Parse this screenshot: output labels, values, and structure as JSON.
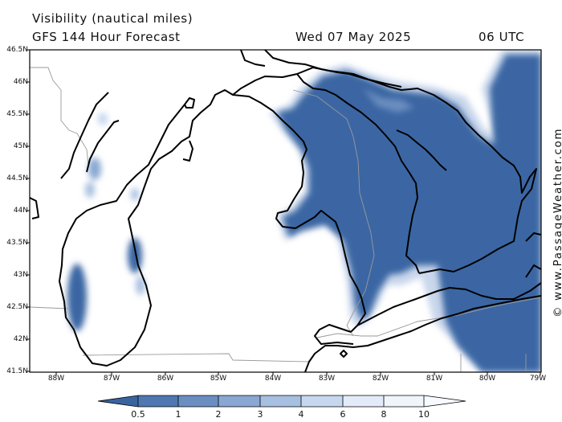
{
  "header": {
    "title": "Visibility (nautical miles)",
    "model": "GFS 144 Hour Forecast",
    "date": "Wed 07 May 2025",
    "time": "06 UTC"
  },
  "axes": {
    "lat_labels": [
      "46.5N",
      "46N",
      "45.5N",
      "45N",
      "44.5N",
      "44N",
      "43.5N",
      "43N",
      "42.5N",
      "42N",
      "41.5N"
    ],
    "lon_labels": [
      "88W",
      "87W",
      "86W",
      "85W",
      "84W",
      "83W",
      "82W",
      "81W",
      "80W",
      "79W"
    ]
  },
  "watermark": "© www.PassageWeather.com",
  "colorbar": {
    "labels": [
      "0.5",
      "1",
      "2",
      "3",
      "4",
      "6",
      "8",
      "10"
    ],
    "colors": [
      "#3a64a0",
      "#4f77b1",
      "#6b8ec2",
      "#89a7d2",
      "#a7bfe0",
      "#c6d7ee",
      "#e2ebf7",
      "#f7faff"
    ]
  },
  "colors": {
    "fog": "#3b66a3",
    "fog_edge": "#9db6dc",
    "coast": "#000000",
    "border": "#9a9a9a"
  }
}
